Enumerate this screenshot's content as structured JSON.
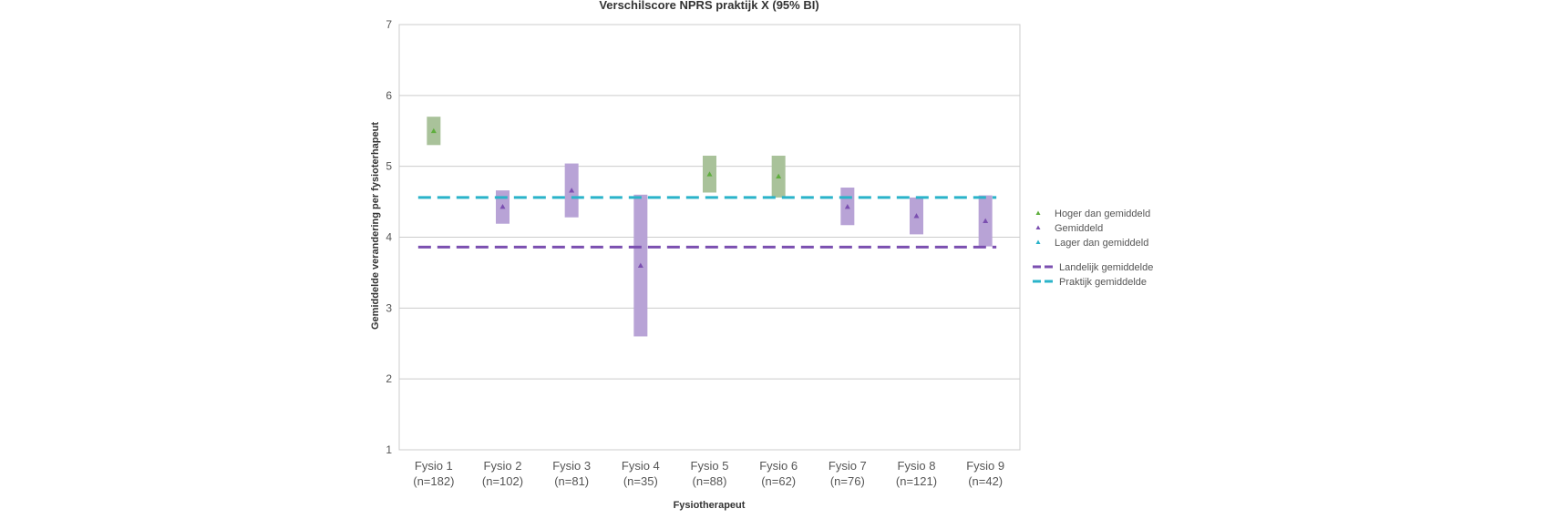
{
  "chart_data": {
    "type": "bar",
    "title": "Verschilscore NPRS praktijk X (95% BI)",
    "xlabel": "Fysiotherapeut",
    "ylabel": "Gemiddelde verandering per fysioterhapeut",
    "ylim": [
      1,
      7
    ],
    "yticks": [
      1,
      2,
      3,
      4,
      5,
      6,
      7
    ],
    "grid": true,
    "legend_position": "right",
    "categories": [
      {
        "name": "Fysio 1",
        "n": "(n=182)"
      },
      {
        "name": "Fysio 2",
        "n": "(n=102)"
      },
      {
        "name": "Fysio 3",
        "n": "(n=81)"
      },
      {
        "name": "Fysio 4",
        "n": "(n=35)"
      },
      {
        "name": "Fysio 5",
        "n": "(n=88)"
      },
      {
        "name": "Fysio 6",
        "n": "(n=62)"
      },
      {
        "name": "Fysio 7",
        "n": "(n=76)"
      },
      {
        "name": "Fysio 8",
        "n": "(n=121)"
      },
      {
        "name": "Fysio 9",
        "n": "(n=42)"
      }
    ],
    "points": [
      {
        "mean": 5.5,
        "lower": 5.3,
        "upper": 5.7,
        "group": "hoger"
      },
      {
        "mean": 4.43,
        "lower": 4.19,
        "upper": 4.66,
        "group": "gemiddeld"
      },
      {
        "mean": 4.66,
        "lower": 4.28,
        "upper": 5.04,
        "group": "gemiddeld"
      },
      {
        "mean": 3.6,
        "lower": 2.6,
        "upper": 4.6,
        "group": "gemiddeld"
      },
      {
        "mean": 4.89,
        "lower": 4.63,
        "upper": 5.15,
        "group": "hoger"
      },
      {
        "mean": 4.86,
        "lower": 4.56,
        "upper": 5.15,
        "group": "hoger"
      },
      {
        "mean": 4.43,
        "lower": 4.17,
        "upper": 4.7,
        "group": "gemiddeld"
      },
      {
        "mean": 4.3,
        "lower": 4.04,
        "upper": 4.56,
        "group": "gemiddeld"
      },
      {
        "mean": 4.23,
        "lower": 3.87,
        "upper": 4.59,
        "group": "gemiddeld"
      }
    ],
    "reference_lines": [
      {
        "key": "landelijk",
        "name": "Landelijk gemiddelde",
        "value": 3.86,
        "color": "#7b4fb0"
      },
      {
        "key": "praktijk",
        "name": "Praktijk gemiddelde",
        "value": 4.56,
        "color": "#2ab3c9"
      }
    ],
    "groups": [
      {
        "key": "hoger",
        "name": "Hoger dan gemiddeld",
        "bar_color": "#a9c29a",
        "marker_color": "#5fae3e"
      },
      {
        "key": "gemiddeld",
        "name": "Gemiddeld",
        "bar_color": "#b8a3d6",
        "marker_color": "#7b4fb0"
      },
      {
        "key": "lager",
        "name": "Lager dan gemiddeld",
        "bar_color": "#9fdbe6",
        "marker_color": "#2ab3c9"
      }
    ]
  }
}
